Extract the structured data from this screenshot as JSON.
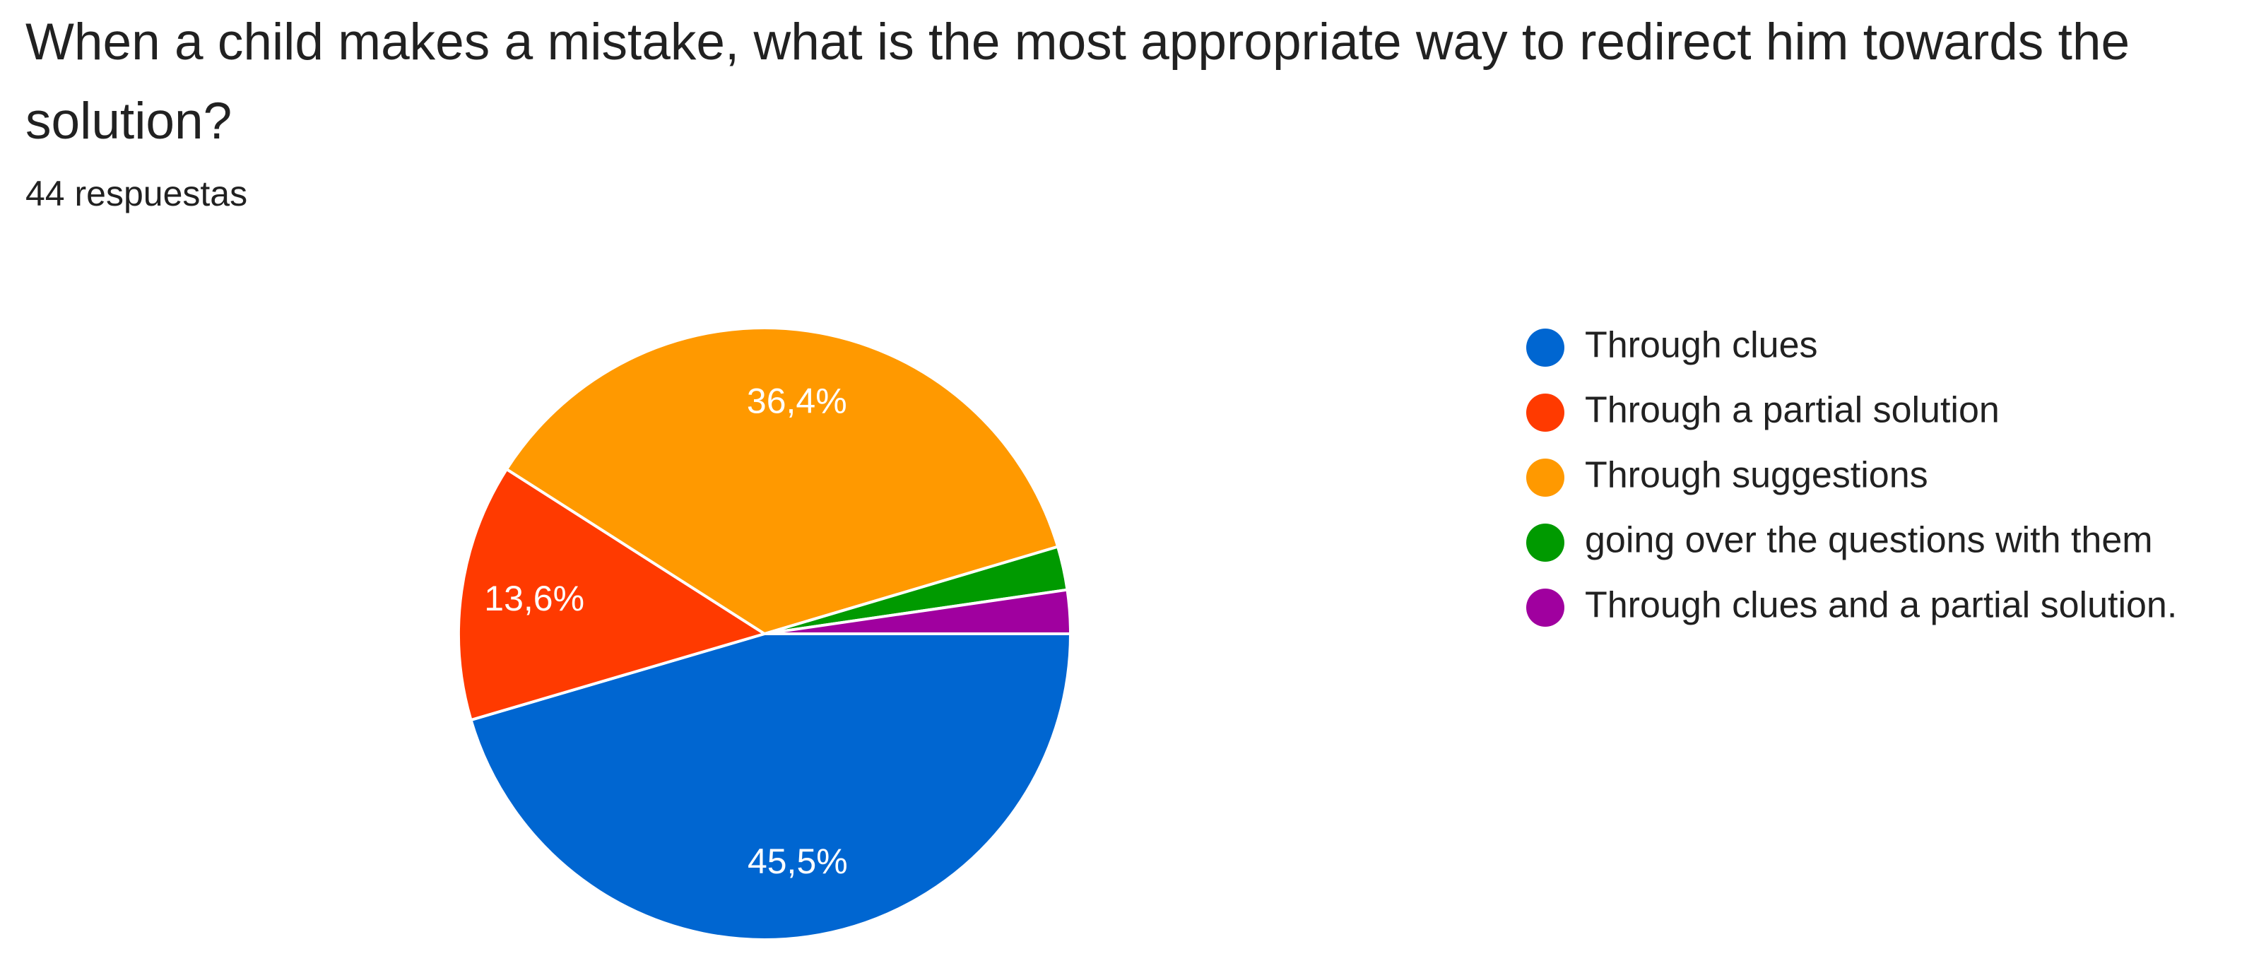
{
  "chart_data": {
    "type": "pie",
    "title": "When a child makes a mistake, what is the most appropriate way to redirect him towards the solution?",
    "subtitle": "44 respuestas",
    "categories": [
      "Through clues",
      "Through a partial solution",
      "Through suggestions",
      "going over the questions with them",
      "Through clues and a partial solution."
    ],
    "values": [
      45.5,
      13.6,
      36.4,
      2.3,
      2.3
    ],
    "value_labels": [
      "45,5%",
      "13,6%",
      "36,4%",
      null,
      null
    ],
    "colors": [
      "#0066d1",
      "#ff3a00",
      "#ff9900",
      "#009a00",
      "#a0009f"
    ],
    "legend": "right"
  }
}
